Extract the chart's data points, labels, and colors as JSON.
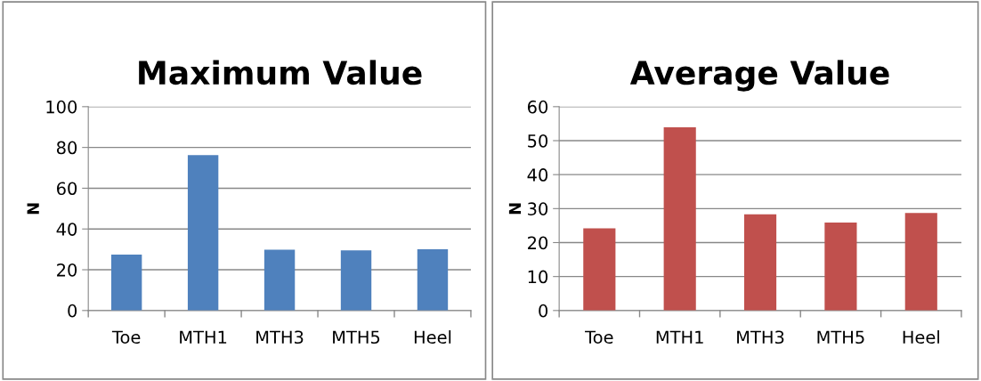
{
  "chart_data": [
    {
      "type": "bar",
      "title": "Maximum Value",
      "ylabel": "N",
      "categories": [
        "Toe",
        "MTH1",
        "MTH3",
        "MTH5",
        "Heel"
      ],
      "values": [
        27.4,
        76.2,
        29.8,
        29.5,
        30.1
      ],
      "color": "#4f81bd",
      "ylim": [
        0,
        100
      ],
      "yticks": [
        0,
        20,
        40,
        60,
        80,
        100
      ],
      "grid": "y"
    },
    {
      "type": "bar",
      "title": "Average Value",
      "ylabel": "N",
      "categories": [
        "Toe",
        "MTH1",
        "MTH3",
        "MTH5",
        "Heel"
      ],
      "values": [
        24.2,
        53.9,
        28.3,
        25.9,
        28.7
      ],
      "color": "#c0504d",
      "ylim": [
        0,
        60
      ],
      "yticks": [
        0,
        10,
        20,
        30,
        40,
        50,
        60
      ],
      "grid": "y"
    }
  ]
}
